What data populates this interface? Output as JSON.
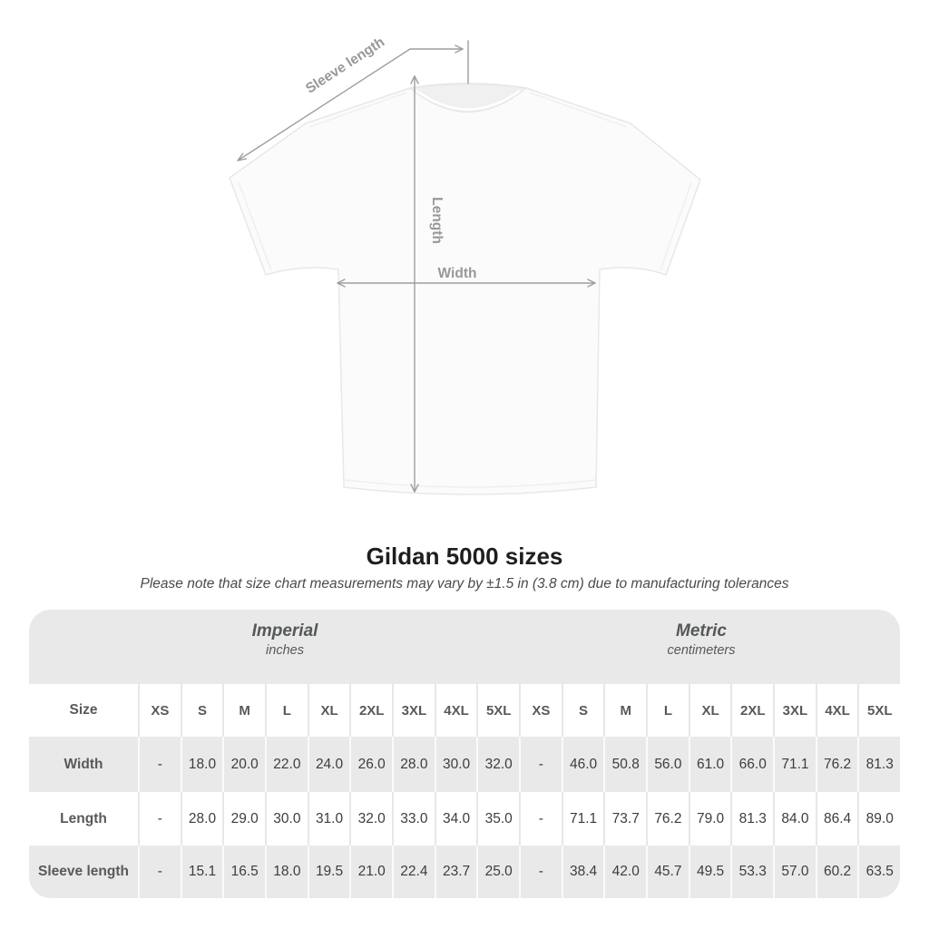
{
  "diagram": {
    "sleeve_length_label": "Sleeve length",
    "length_label": "Length",
    "width_label": "Width"
  },
  "title": "Gildan 5000 sizes",
  "note": "Please note that size chart measurements may vary by ±1.5 in (3.8 cm) due to manufacturing tolerances",
  "chart_data": {
    "type": "table",
    "title": "Gildan 5000 sizes",
    "groups": [
      {
        "name": "Imperial",
        "unit": "inches"
      },
      {
        "name": "Metric",
        "unit": "centimeters"
      }
    ],
    "size_column_header": "Size",
    "sizes": [
      "XS",
      "S",
      "M",
      "L",
      "XL",
      "2XL",
      "3XL",
      "4XL",
      "5XL"
    ],
    "rows": [
      {
        "label": "Width",
        "imperial": [
          "-",
          "18.0",
          "20.0",
          "22.0",
          "24.0",
          "26.0",
          "28.0",
          "30.0",
          "32.0"
        ],
        "metric": [
          "-",
          "46.0",
          "50.8",
          "56.0",
          "61.0",
          "66.0",
          "71.1",
          "76.2",
          "81.3"
        ]
      },
      {
        "label": "Length",
        "imperial": [
          "-",
          "28.0",
          "29.0",
          "30.0",
          "31.0",
          "32.0",
          "33.0",
          "34.0",
          "35.0"
        ],
        "metric": [
          "-",
          "71.1",
          "73.7",
          "76.2",
          "79.0",
          "81.3",
          "84.0",
          "86.4",
          "89.0"
        ]
      },
      {
        "label": "Sleeve length",
        "imperial": [
          "-",
          "15.1",
          "16.5",
          "18.0",
          "19.5",
          "21.0",
          "22.4",
          "23.7",
          "25.0"
        ],
        "metric": [
          "-",
          "38.4",
          "42.0",
          "45.7",
          "49.5",
          "53.3",
          "57.0",
          "60.2",
          "63.5"
        ]
      }
    ]
  },
  "colors": {
    "band_gray": "#e9e9e9",
    "row_gray": "#e9e9e9",
    "header_text": "#55585a",
    "value_text": "#3d3d3d",
    "measure_line": "#9b9fa2",
    "measure_label": "#96989b",
    "title_text": "#1e1e1e"
  }
}
